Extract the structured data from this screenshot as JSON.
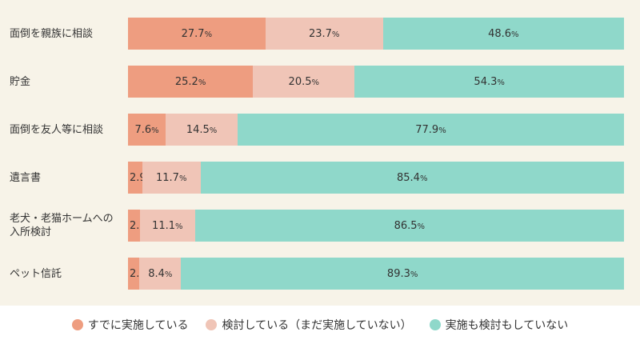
{
  "chart_data": {
    "type": "bar",
    "orientation": "horizontal-stacked-100",
    "title": "",
    "xlabel": "",
    "ylabel": "",
    "unit": "%",
    "xlim": [
      0,
      100
    ],
    "grid": false,
    "legend_position": "bottom",
    "categories": [
      [
        "面倒を親族に相談"
      ],
      [
        "貯金"
      ],
      [
        "面倒を友人等に相談"
      ],
      [
        "遺言書"
      ],
      [
        "老犬・老猫ホームへの",
        "入所検討"
      ],
      [
        "ペット信託"
      ]
    ],
    "series": [
      {
        "name": "すでに実施している",
        "color": "#ee9d80",
        "values": [
          27.7,
          25.2,
          7.6,
          2.9,
          2.4,
          2.3
        ]
      },
      {
        "name": "検討している（まだ実施していない）",
        "color": "#f0c5b7",
        "values": [
          23.7,
          20.5,
          14.5,
          11.7,
          11.1,
          8.4
        ]
      },
      {
        "name": "実施も検討もしていない",
        "color": "#8fd8ca",
        "values": [
          48.6,
          54.3,
          77.9,
          85.4,
          86.5,
          89.3
        ]
      }
    ]
  }
}
